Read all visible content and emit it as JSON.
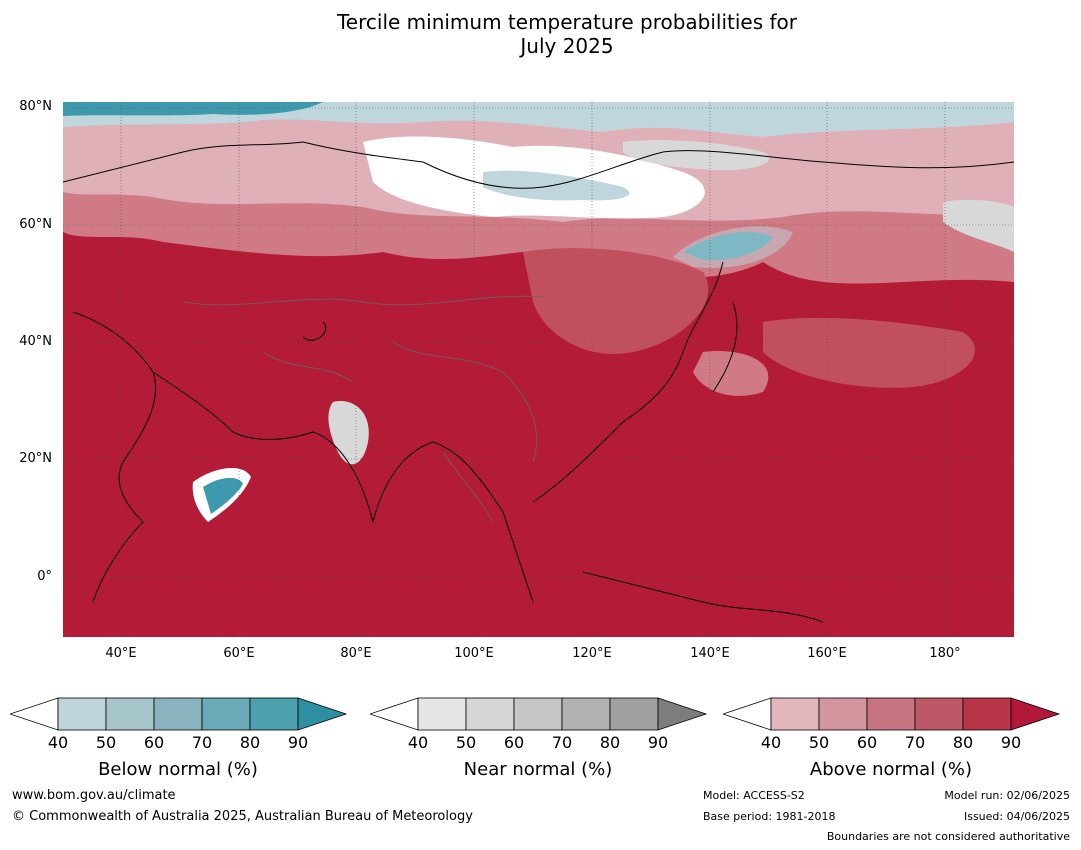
{
  "title_line1": "Tercile minimum temperature probabilities for",
  "title_line2": "July 2025",
  "map": {
    "lat_labels": [
      "80°N",
      "60°N",
      "40°N",
      "20°N",
      "0°"
    ],
    "lon_labels": [
      "40°E",
      "60°E",
      "80°E",
      "100°E",
      "120°E",
      "140°E",
      "160°E",
      "180°"
    ],
    "colors": {
      "above_dominant": "#b41b37",
      "above_high": "#c0505e",
      "above_mid": "#cf7a85",
      "above_low": "#e0b0b8",
      "near": "#d8d8d8",
      "below_low": "#c0d6dd",
      "below_mid": "#7ab0c0",
      "below_high": "#3d9aad",
      "white": "#ffffff"
    }
  },
  "legends": [
    {
      "label": "Below normal (%)",
      "ticks": [
        "40",
        "50",
        "60",
        "70",
        "80",
        "90"
      ],
      "colors": [
        "#bfd3da",
        "#a6c6cc",
        "#89b3be",
        "#6aaab6",
        "#4ea0b0",
        "#2e8fa3"
      ]
    },
    {
      "label": "Near normal (%)",
      "ticks": [
        "40",
        "50",
        "60",
        "70",
        "80",
        "90"
      ],
      "colors": [
        "#e6e6e6",
        "#d6d6d6",
        "#c6c6c6",
        "#b2b2b2",
        "#a0a0a0",
        "#7d7d7d"
      ]
    },
    {
      "label": "Above normal (%)",
      "ticks": [
        "40",
        "50",
        "60",
        "70",
        "80",
        "90"
      ],
      "colors": [
        "#e2b6bd",
        "#d4969e",
        "#c77480",
        "#bd5867",
        "#b8354a",
        "#b2183a"
      ]
    }
  ],
  "footer": {
    "website": "www.bom.gov.au/climate",
    "copyright": "© Commonwealth of Australia 2025, Australian Bureau of Meteorology",
    "model": "Model: ACCESS-S2",
    "base_period": "Base period: 1981-2018",
    "model_run": "Model run: 02/06/2025",
    "issued": "Issued: 04/06/2025",
    "disclaimer": "Boundaries are not considered authoritative"
  }
}
